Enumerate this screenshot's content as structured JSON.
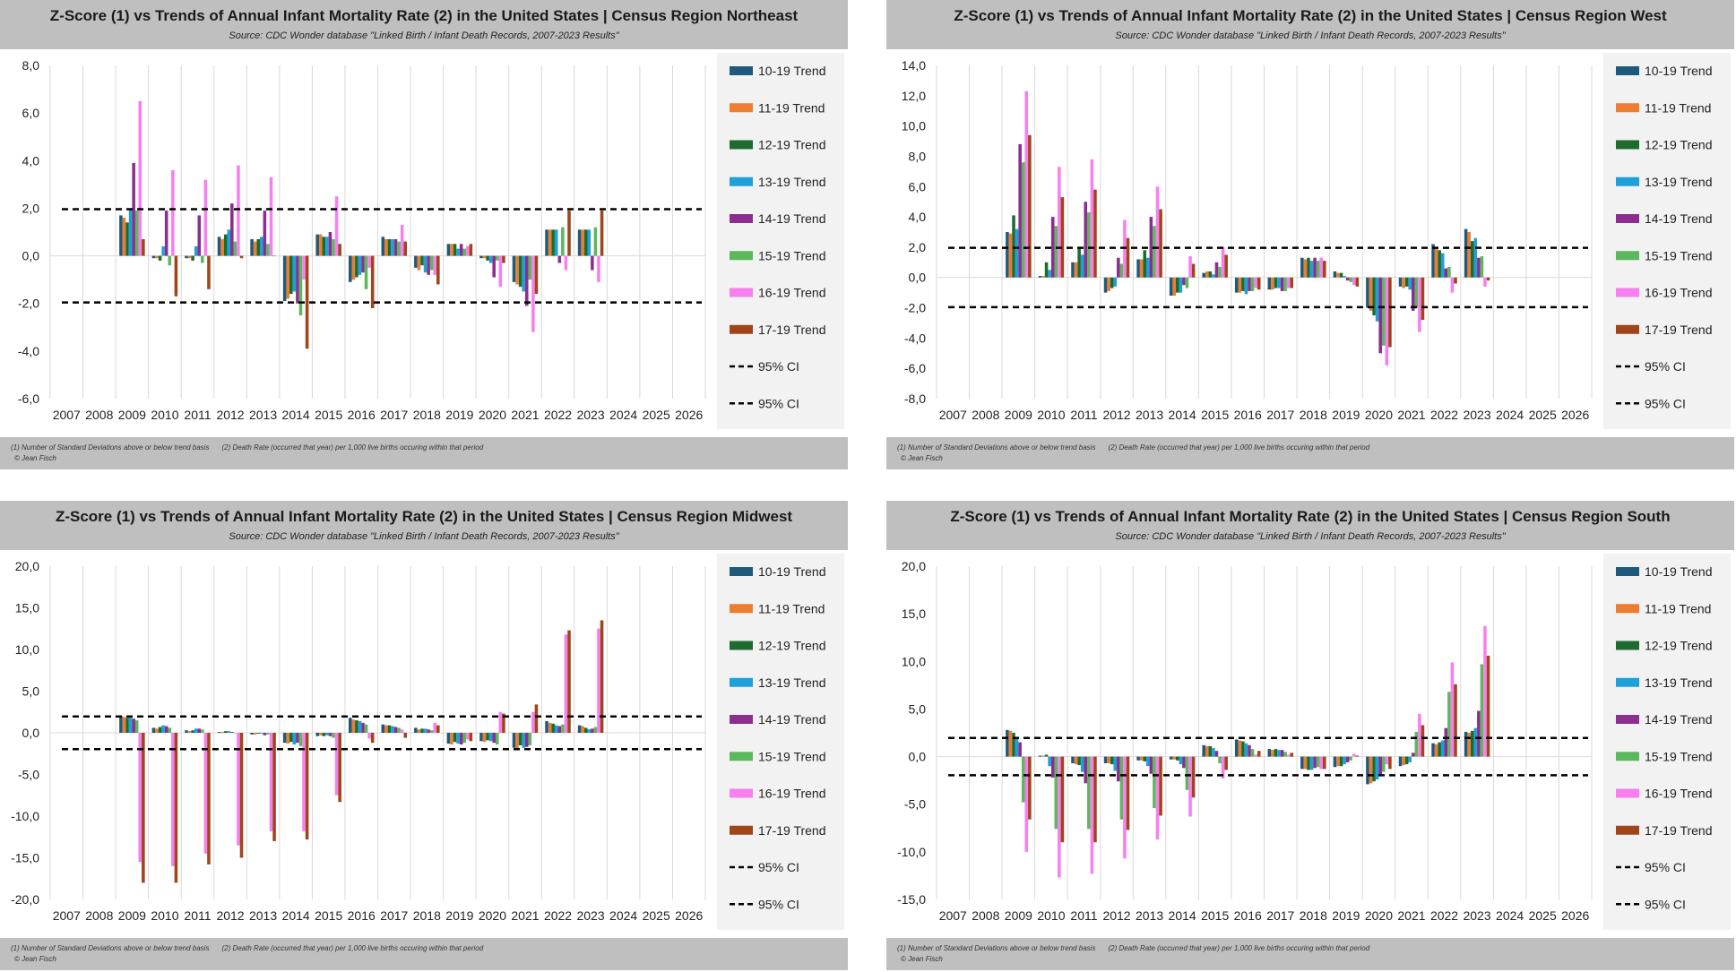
{
  "colors": {
    "panel_bar": "#bfbfbf",
    "series": [
      "#1f5a7a",
      "#ed7d31",
      "#1e6b30",
      "#1fa0d8",
      "#8b2e8f",
      "#5cb85c",
      "#f77ff0",
      "#a0441a"
    ],
    "ci_line": "#000000"
  },
  "footer": {
    "note1": "(1) Number of Standard Deviations above or below trend basis",
    "note2": "(2) Death Rate (occurred that year) per 1,000 live births occuring within that period",
    "copyright": "© Jean Fisch"
  },
  "chart_data": [
    {
      "type": "bar",
      "title": "Z-Score (1) vs Trends of Annual Infant Mortality Rate (2) in the United States | Census Region Northeast",
      "subtitle": "Source: CDC Wonder database \"Linked Birth / Infant Death Records, 2007-2023 Results\"",
      "categories": [
        "2007",
        "2008",
        "2009",
        "2010",
        "2011",
        "2012",
        "2013",
        "2014",
        "2015",
        "2016",
        "2017",
        "2018",
        "2019",
        "2020",
        "2021",
        "2022",
        "2023",
        "2024",
        "2025",
        "2026"
      ],
      "ylim": [
        -6,
        8
      ],
      "yticks": [
        "-6,0",
        "-4,0",
        "-2,0",
        "0,0",
        "2,0",
        "4,0",
        "6,0",
        "8,0"
      ],
      "ytick_values": [
        -6,
        -4,
        -2,
        0,
        2,
        4,
        6,
        8
      ],
      "ci": [
        1.96,
        -1.96
      ],
      "legend": [
        "10-19 Trend",
        "11-19 Trend",
        "12-19 Trend",
        "13-19 Trend",
        "14-19 Trend",
        "15-19 Trend",
        "16-19 Trend",
        "17-19 Trend",
        "95% CI",
        "95% CI"
      ],
      "series": [
        {
          "name": "10-19 Trend",
          "values": [
            null,
            null,
            1.7,
            -0.1,
            -0.1,
            0.8,
            0.7,
            -1.9,
            0.9,
            -1.1,
            0.8,
            -0.5,
            0.5,
            -0.1,
            -1.1,
            1.1,
            1.1,
            null,
            null,
            null
          ]
        },
        {
          "name": "11-19 Trend",
          "values": [
            null,
            null,
            1.6,
            -0.1,
            -0.1,
            0.7,
            0.6,
            -1.8,
            0.9,
            -1.0,
            0.7,
            -0.6,
            0.5,
            -0.1,
            -1.2,
            1.1,
            1.1,
            null,
            null,
            null
          ]
        },
        {
          "name": "12-19 Trend",
          "values": [
            null,
            null,
            1.4,
            -0.2,
            -0.2,
            0.9,
            0.7,
            -1.6,
            0.8,
            -0.9,
            0.7,
            -0.4,
            0.5,
            -0.2,
            -1.3,
            1.1,
            1.1,
            null,
            null,
            null
          ]
        },
        {
          "name": "13-19 Trend",
          "values": [
            null,
            null,
            2.0,
            0.4,
            0.4,
            1.1,
            0.8,
            -1.5,
            0.8,
            -0.8,
            0.7,
            -0.7,
            0.3,
            -0.3,
            -1.5,
            1.1,
            1.1,
            null,
            null,
            null
          ]
        },
        {
          "name": "14-19 Trend",
          "values": [
            null,
            null,
            3.9,
            1.9,
            1.7,
            2.2,
            1.9,
            -2.0,
            1.0,
            -0.7,
            0.7,
            -0.8,
            0.5,
            -0.9,
            -2.1,
            -0.3,
            -0.6,
            null,
            null,
            null
          ]
        },
        {
          "name": "15-19 Trend",
          "values": [
            null,
            null,
            1.9,
            -0.4,
            -0.3,
            0.6,
            0.5,
            -2.5,
            0.7,
            -1.4,
            0.6,
            -0.6,
            0.3,
            -0.2,
            -1.0,
            1.2,
            1.2,
            null,
            null,
            null
          ]
        },
        {
          "name": "16-19 Trend",
          "values": [
            null,
            null,
            6.5,
            3.6,
            3.2,
            3.8,
            3.3,
            -1.0,
            2.5,
            -0.5,
            1.3,
            -0.8,
            0.4,
            -1.3,
            -3.2,
            -0.6,
            -1.1,
            null,
            null,
            null
          ]
        },
        {
          "name": "17-19 Trend",
          "values": [
            null,
            null,
            0.7,
            -1.7,
            -1.4,
            -0.1,
            0.0,
            -3.9,
            0.5,
            -2.2,
            0.6,
            -1.2,
            0.5,
            -0.3,
            -1.6,
            1.9,
            1.9,
            null,
            null,
            null
          ]
        }
      ]
    },
    {
      "type": "bar",
      "title": "Z-Score (1) vs Trends of Annual Infant Mortality Rate (2) in the United States | Census Region West",
      "subtitle": "Source: CDC Wonder database \"Linked Birth / Infant Death Records, 2007-2023 Results\"",
      "categories": [
        "2007",
        "2008",
        "2009",
        "2010",
        "2011",
        "2012",
        "2013",
        "2014",
        "2015",
        "2016",
        "2017",
        "2018",
        "2019",
        "2020",
        "2021",
        "2022",
        "2023",
        "2024",
        "2025",
        "2026"
      ],
      "ylim": [
        -8,
        14
      ],
      "yticks": [
        "-8,0",
        "-6,0",
        "-4,0",
        "-2,0",
        "0,0",
        "2,0",
        "4,0",
        "6,0",
        "8,0",
        "10,0",
        "12,0",
        "14,0"
      ],
      "ytick_values": [
        -8,
        -6,
        -4,
        -2,
        0,
        2,
        4,
        6,
        8,
        10,
        12,
        14
      ],
      "ci": [
        1.96,
        -1.96
      ],
      "legend": [
        "10-19 Trend",
        "11-19 Trend",
        "12-19 Trend",
        "13-19 Trend",
        "14-19 Trend",
        "15-19 Trend",
        "16-19 Trend",
        "17-19 Trend",
        "95% CI",
        "95% CI"
      ],
      "series": [
        {
          "name": "10-19 Trend",
          "values": [
            null,
            null,
            3.0,
            0.1,
            1.0,
            -1.0,
            1.2,
            -1.2,
            0.3,
            -1.0,
            -0.8,
            1.3,
            0.4,
            -2.0,
            -0.6,
            2.2,
            3.2,
            null,
            null,
            null
          ]
        },
        {
          "name": "11-19 Trend",
          "values": [
            null,
            null,
            2.9,
            0.1,
            1.0,
            -0.9,
            1.2,
            -1.2,
            0.4,
            -1.0,
            -0.8,
            1.2,
            0.3,
            -2.2,
            -0.7,
            2.0,
            3.0,
            null,
            null,
            null
          ]
        },
        {
          "name": "12-19 Trend",
          "values": [
            null,
            null,
            4.1,
            1.0,
            2.0,
            -0.7,
            1.8,
            -1.0,
            0.4,
            -0.9,
            -0.7,
            1.3,
            0.3,
            -2.5,
            -0.6,
            1.8,
            2.4,
            null,
            null,
            null
          ]
        },
        {
          "name": "13-19 Trend",
          "values": [
            null,
            null,
            3.2,
            0.5,
            1.5,
            -0.6,
            1.3,
            -1.0,
            0.2,
            -1.1,
            -0.7,
            1.1,
            0.1,
            -2.9,
            -0.8,
            1.6,
            2.6,
            null,
            null,
            null
          ]
        },
        {
          "name": "14-19 Trend",
          "values": [
            null,
            null,
            8.8,
            4.0,
            5.0,
            1.3,
            4.0,
            -0.5,
            1.0,
            -0.9,
            -0.9,
            1.3,
            -0.2,
            -5.0,
            -2.2,
            0.6,
            1.3,
            null,
            null,
            null
          ]
        },
        {
          "name": "15-19 Trend",
          "values": [
            null,
            null,
            7.6,
            3.4,
            4.3,
            0.9,
            3.4,
            -0.7,
            0.7,
            -0.9,
            -0.9,
            1.1,
            -0.3,
            -4.5,
            -2.0,
            0.7,
            1.4,
            null,
            null,
            null
          ]
        },
        {
          "name": "16-19 Trend",
          "values": [
            null,
            null,
            12.3,
            7.3,
            7.8,
            3.8,
            6.0,
            1.4,
            2.0,
            -0.7,
            -0.7,
            1.3,
            -0.5,
            -5.8,
            -3.6,
            -1.0,
            -0.6,
            null,
            null,
            null
          ]
        },
        {
          "name": "17-19 Trend",
          "values": [
            null,
            null,
            9.4,
            5.3,
            5.8,
            2.6,
            4.5,
            0.9,
            1.5,
            -0.8,
            -0.7,
            1.1,
            -0.6,
            -4.6,
            -2.8,
            -0.4,
            -0.2,
            null,
            null,
            null
          ]
        }
      ]
    },
    {
      "type": "bar",
      "title": "Z-Score (1) vs Trends of Annual Infant Mortality Rate (2) in the United States | Census Region Midwest",
      "subtitle": "Source: CDC Wonder database \"Linked Birth / Infant Death Records, 2007-2023 Results\"",
      "categories": [
        "2007",
        "2008",
        "2009",
        "2010",
        "2011",
        "2012",
        "2013",
        "2014",
        "2015",
        "2016",
        "2017",
        "2018",
        "2019",
        "2020",
        "2021",
        "2022",
        "2023",
        "2024",
        "2025",
        "2026"
      ],
      "ylim": [
        -20,
        20
      ],
      "yticks": [
        "-20,0",
        "-15,0",
        "-10,0",
        "-5,0",
        "0,0",
        "5,0",
        "10,0",
        "15,0",
        "20,0"
      ],
      "ytick_values": [
        -20,
        -15,
        -10,
        -5,
        0,
        5,
        10,
        15,
        20
      ],
      "ci": [
        1.96,
        -1.96
      ],
      "legend": [
        "10-19 Trend",
        "11-19 Trend",
        "12-19 Trend",
        "13-19 Trend",
        "14-19 Trend",
        "15-19 Trend",
        "16-19 Trend",
        "17-19 Trend",
        "95% CI",
        "95% CI"
      ],
      "series": [
        {
          "name": "10-19 Trend",
          "values": [
            null,
            null,
            2.0,
            0.6,
            0.3,
            0.1,
            -0.2,
            -1.2,
            -0.4,
            1.8,
            1.0,
            0.6,
            -1.3,
            -1.0,
            -1.8,
            1.4,
            0.9,
            null,
            null,
            null
          ]
        },
        {
          "name": "11-19 Trend",
          "values": [
            null,
            null,
            1.9,
            0.5,
            0.2,
            0.1,
            -0.2,
            -1.3,
            -0.3,
            1.6,
            0.9,
            0.4,
            -1.4,
            -1.1,
            -1.9,
            1.2,
            0.8,
            null,
            null,
            null
          ]
        },
        {
          "name": "12-19 Trend",
          "values": [
            null,
            null,
            1.8,
            0.7,
            0.3,
            0.2,
            -0.1,
            -1.1,
            -0.4,
            1.5,
            0.9,
            0.5,
            -1.1,
            -0.9,
            -1.5,
            1.1,
            0.6,
            null,
            null,
            null
          ]
        },
        {
          "name": "13-19 Trend",
          "values": [
            null,
            null,
            2.0,
            0.9,
            0.5,
            0.2,
            -0.1,
            -1.4,
            -0.3,
            1.4,
            0.8,
            0.5,
            -1.3,
            -1.0,
            -1.8,
            0.9,
            0.4,
            null,
            null,
            null
          ]
        },
        {
          "name": "14-19 Trend",
          "values": [
            null,
            null,
            1.7,
            0.8,
            0.5,
            0.1,
            -0.3,
            -1.2,
            -0.4,
            1.2,
            0.7,
            0.4,
            -1.4,
            -1.2,
            -1.7,
            0.8,
            0.5,
            null,
            null,
            null
          ]
        },
        {
          "name": "15-19 Trend",
          "values": [
            null,
            null,
            1.5,
            0.6,
            0.4,
            0.0,
            -0.2,
            -1.6,
            -0.6,
            1.0,
            0.6,
            0.3,
            -1.2,
            -1.4,
            -1.5,
            1.0,
            0.7,
            null,
            null,
            null
          ]
        },
        {
          "name": "16-19 Trend",
          "values": [
            null,
            null,
            -15.5,
            -16.0,
            -14.5,
            -13.5,
            -11.8,
            -11.8,
            -7.5,
            -0.7,
            0.4,
            1.2,
            -0.8,
            2.5,
            2.5,
            11.8,
            12.5,
            null,
            null,
            null
          ]
        },
        {
          "name": "17-19 Trend",
          "values": [
            null,
            null,
            -18.0,
            -18.0,
            -15.8,
            -15.0,
            -13.0,
            -12.8,
            -8.3,
            -1.2,
            -0.6,
            0.9,
            -1.0,
            2.3,
            3.4,
            12.3,
            13.5,
            null,
            null,
            null
          ]
        }
      ]
    },
    {
      "type": "bar",
      "title": "Z-Score (1) vs Trends of Annual Infant Mortality Rate (2) in the United States | Census Region South",
      "subtitle": "Source: CDC Wonder database \"Linked Birth / Infant Death Records, 2007-2023 Results\"",
      "categories": [
        "2007",
        "2008",
        "2009",
        "2010",
        "2011",
        "2012",
        "2013",
        "2014",
        "2015",
        "2016",
        "2017",
        "2018",
        "2019",
        "2020",
        "2021",
        "2022",
        "2023",
        "2024",
        "2025",
        "2026"
      ],
      "ylim": [
        -15,
        20
      ],
      "yticks": [
        "-15,0",
        "-10,0",
        "-5,0",
        "0,0",
        "5,0",
        "10,0",
        "15,0",
        "20,0"
      ],
      "ytick_values": [
        -15,
        -10,
        -5,
        0,
        5,
        10,
        15,
        20
      ],
      "ci": [
        1.96,
        -1.96
      ],
      "legend": [
        "10-19 Trend",
        "11-19 Trend",
        "12-19 Trend",
        "13-19 Trend",
        "14-19 Trend",
        "15-19 Trend",
        "16-19 Trend",
        "17-19 Trend",
        "95% CI",
        "95% CI"
      ],
      "series": [
        {
          "name": "10-19 Trend",
          "values": [
            null,
            null,
            2.8,
            0.1,
            -0.7,
            -0.7,
            -0.4,
            -0.3,
            1.2,
            1.8,
            0.8,
            -1.3,
            -1.1,
            -2.9,
            -1.0,
            1.4,
            2.6,
            null,
            null,
            null
          ]
        },
        {
          "name": "11-19 Trend",
          "values": [
            null,
            null,
            2.7,
            0.1,
            -0.8,
            -0.7,
            -0.4,
            -0.3,
            1.1,
            1.7,
            0.7,
            -1.3,
            -1.0,
            -2.8,
            -0.9,
            1.3,
            2.5,
            null,
            null,
            null
          ]
        },
        {
          "name": "12-19 Trend",
          "values": [
            null,
            null,
            2.5,
            0.2,
            -0.9,
            -0.8,
            -0.5,
            -0.4,
            1.1,
            1.6,
            0.8,
            -1.4,
            -1.0,
            -2.6,
            -0.8,
            1.5,
            2.7,
            null,
            null,
            null
          ]
        },
        {
          "name": "13-19 Trend",
          "values": [
            null,
            null,
            2.0,
            -1.0,
            -1.6,
            -1.5,
            -1.0,
            -0.8,
            0.9,
            1.4,
            0.7,
            -1.4,
            -0.8,
            -2.4,
            -0.6,
            1.7,
            3.0,
            null,
            null,
            null
          ]
        },
        {
          "name": "14-19 Trend",
          "values": [
            null,
            null,
            1.5,
            -2.2,
            -2.8,
            -2.6,
            -1.8,
            -1.2,
            0.6,
            1.2,
            0.7,
            -1.2,
            -0.6,
            -2.0,
            0.4,
            3.0,
            4.8,
            null,
            null,
            null
          ]
        },
        {
          "name": "15-19 Trend",
          "values": [
            null,
            null,
            -4.8,
            -7.6,
            -7.6,
            -6.6,
            -5.4,
            -3.5,
            -0.7,
            0.8,
            0.5,
            -1.1,
            -0.4,
            -1.6,
            2.6,
            6.8,
            9.7,
            null,
            null,
            null
          ]
        },
        {
          "name": "16-19 Trend",
          "values": [
            null,
            null,
            -10.0,
            -12.7,
            -12.3,
            -10.7,
            -8.7,
            -6.3,
            -2.3,
            0.2,
            0.2,
            -1.3,
            0.3,
            -0.8,
            4.5,
            9.9,
            13.7,
            null,
            null,
            null
          ]
        },
        {
          "name": "17-19 Trend",
          "values": [
            null,
            null,
            -6.6,
            -9.0,
            -9.0,
            -7.7,
            -6.2,
            -4.3,
            -1.4,
            0.6,
            0.4,
            -1.3,
            0.1,
            -1.3,
            3.3,
            7.6,
            10.6,
            null,
            null,
            null
          ]
        }
      ]
    }
  ]
}
